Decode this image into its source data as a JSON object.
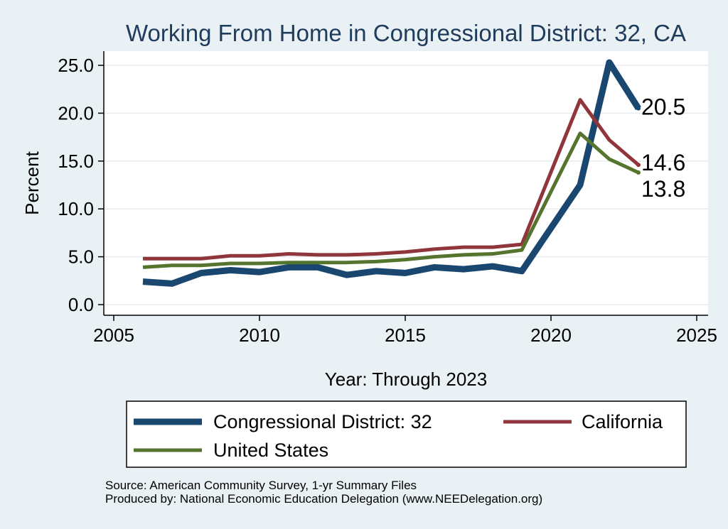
{
  "chart_data": {
    "type": "line",
    "title": "Working From Home in Congressional District: 32, CA",
    "xlabel": "Year: Through 2023",
    "ylabel": "Percent",
    "xlim": [
      2005,
      2025
    ],
    "ylim": [
      0,
      25
    ],
    "xticks": [
      "2005",
      "2010",
      "2015",
      "2020",
      "2025"
    ],
    "yticks": [
      "0.0",
      "5.0",
      "10.0",
      "15.0",
      "20.0",
      "25.0"
    ],
    "grid": true,
    "legend_position": "bottom",
    "x": [
      2006,
      2007,
      2008,
      2009,
      2010,
      2011,
      2012,
      2013,
      2014,
      2015,
      2016,
      2017,
      2018,
      2019,
      2021,
      2022,
      2023
    ],
    "series": [
      {
        "name": "Congressional District: 32",
        "color": "#1a476f",
        "values": [
          2.4,
          2.2,
          3.3,
          3.6,
          3.4,
          3.9,
          3.9,
          3.1,
          3.5,
          3.3,
          3.9,
          3.7,
          4.0,
          3.5,
          12.5,
          25.3,
          20.5
        ],
        "end_label": "20.5"
      },
      {
        "name": "California",
        "color": "#90353b",
        "values": [
          4.8,
          4.8,
          4.8,
          5.1,
          5.1,
          5.3,
          5.2,
          5.2,
          5.3,
          5.5,
          5.8,
          6.0,
          6.0,
          6.3,
          21.4,
          17.2,
          14.6
        ],
        "end_label": "14.6"
      },
      {
        "name": "United States",
        "color": "#55752f",
        "values": [
          3.9,
          4.1,
          4.1,
          4.3,
          4.3,
          4.4,
          4.4,
          4.4,
          4.5,
          4.7,
          5.0,
          5.2,
          5.3,
          5.7,
          17.9,
          15.2,
          13.8
        ],
        "end_label": "13.8"
      }
    ],
    "notes": [
      "Source: American Community Survey, 1-yr Summary Files",
      "Produced by: National Economic Education Delegation (www.NEEDelegation.org)"
    ]
  }
}
